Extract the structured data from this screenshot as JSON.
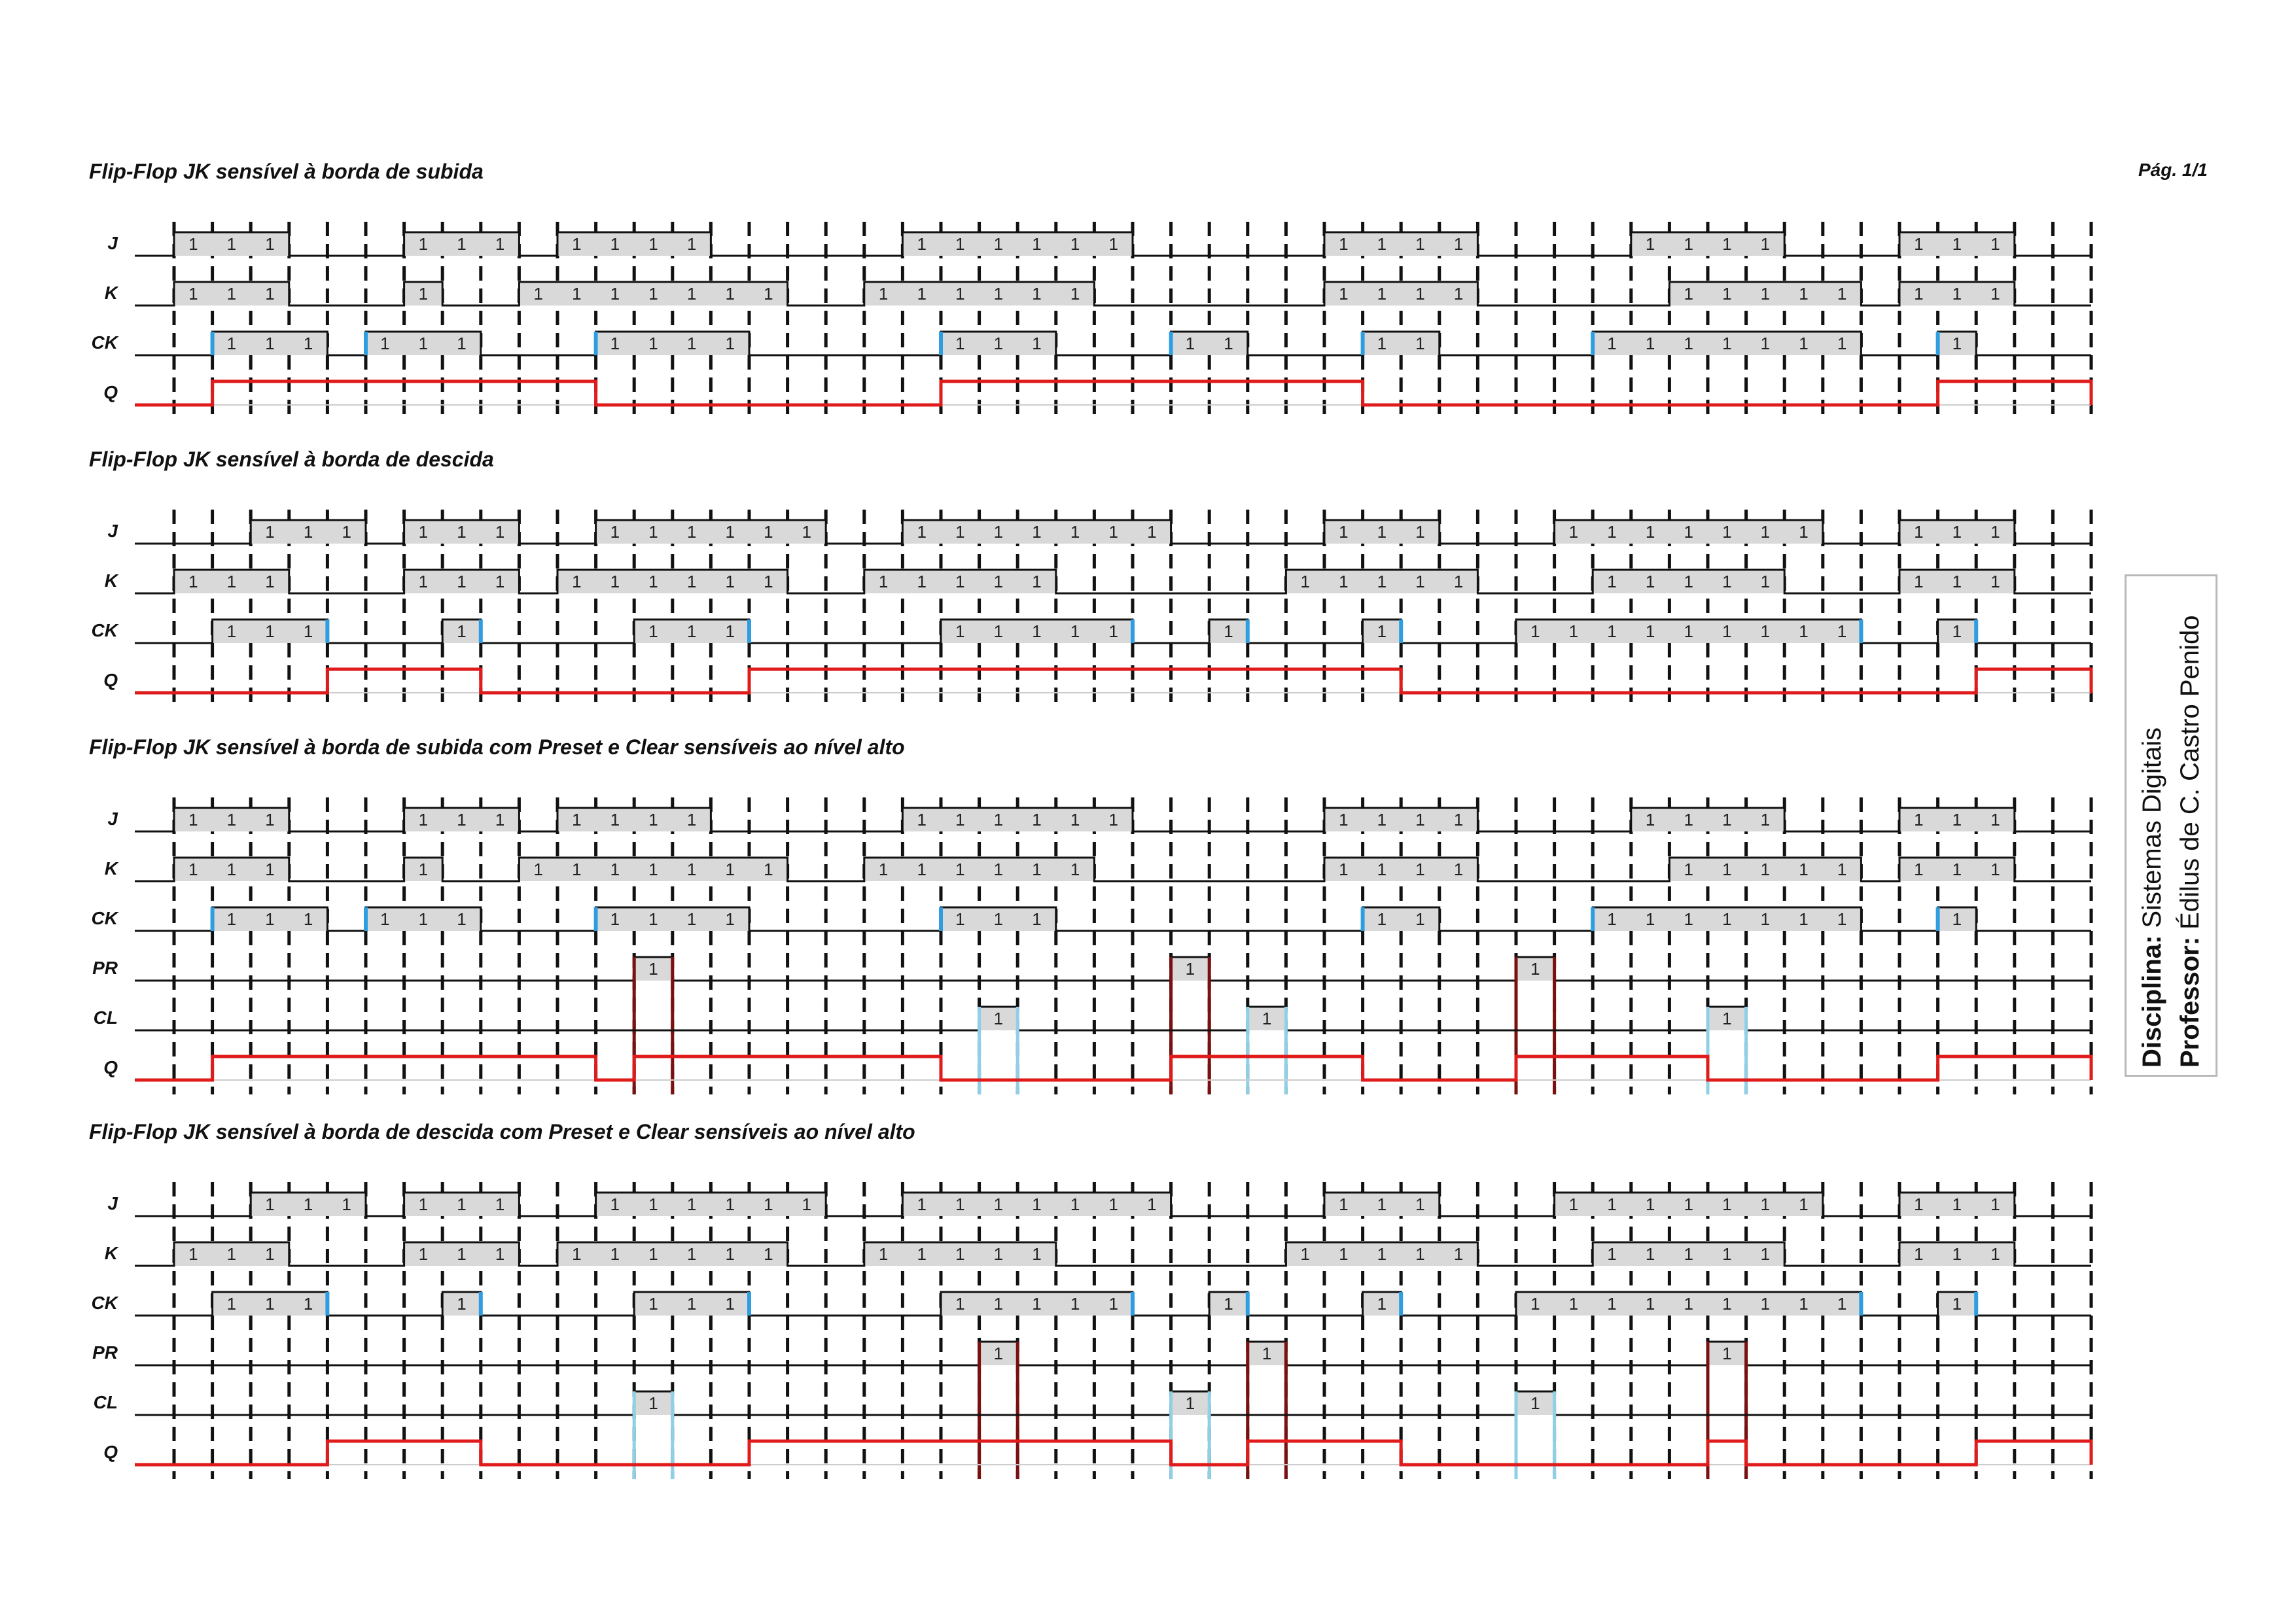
{
  "page": {
    "number": "Pág. 1/1"
  },
  "info": {
    "discipline_label": "Disciplina:",
    "discipline_value": "Sistemas Digitais",
    "professor_label": "Professor:",
    "professor_value": "Édilus de C. Castro Penido"
  },
  "colors": {
    "grid": "#111111",
    "signal": "#111111",
    "high_fill": "#d9d9d9",
    "q_output": "#e01b1b",
    "ck_edge": "#2f9ee0",
    "preset_marker": "#7a1010",
    "clear_marker": "#8fd0e6"
  },
  "sections": [
    {
      "title": "Flip-Flop JK sensível à borda de subida",
      "signals": [
        {
          "name": "J",
          "high": [
            [
              0,
              3
            ],
            [
              6,
              9
            ],
            [
              10,
              14
            ],
            [
              19,
              25
            ],
            [
              30,
              34
            ],
            [
              38,
              42
            ],
            [
              45,
              48
            ]
          ],
          "high_label": "1"
        },
        {
          "name": "K",
          "high": [
            [
              0,
              3
            ],
            [
              6,
              7
            ],
            [
              9,
              16
            ],
            [
              18,
              24
            ],
            [
              30,
              34
            ],
            [
              39,
              44
            ],
            [
              45,
              48
            ]
          ],
          "high_label": "1"
        },
        {
          "name": "CK",
          "high": [
            [
              1,
              4
            ],
            [
              5,
              8
            ],
            [
              11,
              15
            ],
            [
              20,
              23
            ],
            [
              26,
              28
            ],
            [
              31,
              33
            ],
            [
              37,
              44
            ],
            [
              46,
              47
            ]
          ],
          "high_label": "1"
        },
        {
          "name": "Q",
          "high": [
            [
              1,
              11
            ],
            [
              20,
              31
            ],
            [
              46,
              50
            ]
          ],
          "high_label": ""
        }
      ]
    },
    {
      "title": "Flip-Flop JK sensível à borda de descida",
      "signals": [
        {
          "name": "J",
          "high": [
            [
              2,
              5
            ],
            [
              6,
              9
            ],
            [
              11,
              17
            ],
            [
              19,
              26
            ],
            [
              30,
              33
            ],
            [
              36,
              43
            ],
            [
              45,
              48
            ]
          ],
          "high_label": "1"
        },
        {
          "name": "K",
          "high": [
            [
              0,
              3
            ],
            [
              6,
              9
            ],
            [
              10,
              16
            ],
            [
              18,
              23
            ],
            [
              29,
              34
            ],
            [
              37,
              42
            ],
            [
              45,
              48
            ]
          ],
          "high_label": "1"
        },
        {
          "name": "CK",
          "high": [
            [
              1,
              4
            ],
            [
              7,
              8
            ],
            [
              12,
              15
            ],
            [
              20,
              25
            ],
            [
              27,
              28
            ],
            [
              31,
              32
            ],
            [
              35,
              44
            ],
            [
              46,
              47
            ]
          ],
          "high_label": "1"
        },
        {
          "name": "Q",
          "high": [
            [
              4,
              8
            ],
            [
              15,
              32
            ],
            [
              47,
              50
            ]
          ],
          "high_label": ""
        }
      ]
    },
    {
      "title": "Flip-Flop JK sensível à borda de subida com Preset e Clear sensíveis ao nível alto",
      "signals": [
        {
          "name": "J",
          "high": [
            [
              0,
              3
            ],
            [
              6,
              9
            ],
            [
              10,
              14
            ],
            [
              19,
              25
            ],
            [
              30,
              34
            ],
            [
              38,
              42
            ],
            [
              45,
              48
            ]
          ],
          "high_label": "1"
        },
        {
          "name": "K",
          "high": [
            [
              0,
              3
            ],
            [
              6,
              7
            ],
            [
              9,
              16
            ],
            [
              18,
              24
            ],
            [
              30,
              34
            ],
            [
              39,
              44
            ],
            [
              45,
              48
            ]
          ],
          "high_label": "1"
        },
        {
          "name": "CK",
          "high": [
            [
              1,
              4
            ],
            [
              5,
              8
            ],
            [
              11,
              15
            ],
            [
              20,
              23
            ],
            [
              31,
              33
            ],
            [
              37,
              44
            ],
            [
              46,
              47
            ]
          ],
          "high_label": "1"
        },
        {
          "name": "PR",
          "high": [
            [
              12,
              13
            ],
            [
              26,
              27
            ],
            [
              35,
              36
            ]
          ],
          "high_label": "1"
        },
        {
          "name": "CL",
          "high": [
            [
              21,
              22
            ],
            [
              28,
              29
            ],
            [
              40,
              41
            ]
          ],
          "high_label": "1"
        },
        {
          "name": "Q",
          "high": [
            [
              1,
              11
            ],
            [
              12,
              20
            ],
            [
              26,
              31
            ],
            [
              35,
              40
            ],
            [
              46,
              50
            ]
          ],
          "high_label": ""
        }
      ]
    },
    {
      "title": "Flip-Flop JK sensível à borda de descida com Preset e Clear sensíveis ao nível alto",
      "signals": [
        {
          "name": "J",
          "high": [
            [
              2,
              5
            ],
            [
              6,
              9
            ],
            [
              11,
              17
            ],
            [
              19,
              26
            ],
            [
              30,
              33
            ],
            [
              36,
              43
            ],
            [
              45,
              48
            ]
          ],
          "high_label": "1"
        },
        {
          "name": "K",
          "high": [
            [
              0,
              3
            ],
            [
              6,
              9
            ],
            [
              10,
              16
            ],
            [
              18,
              23
            ],
            [
              29,
              34
            ],
            [
              37,
              42
            ],
            [
              45,
              48
            ]
          ],
          "high_label": "1"
        },
        {
          "name": "CK",
          "high": [
            [
              1,
              4
            ],
            [
              7,
              8
            ],
            [
              12,
              15
            ],
            [
              20,
              25
            ],
            [
              27,
              28
            ],
            [
              31,
              32
            ],
            [
              35,
              44
            ],
            [
              46,
              47
            ]
          ],
          "high_label": "1"
        },
        {
          "name": "PR",
          "high": [
            [
              21,
              22
            ],
            [
              28,
              29
            ],
            [
              40,
              41
            ]
          ],
          "high_label": "1"
        },
        {
          "name": "CL",
          "high": [
            [
              12,
              13
            ],
            [
              26,
              27
            ],
            [
              35,
              36
            ]
          ],
          "high_label": "1"
        },
        {
          "name": "Q",
          "high": [
            [
              4,
              8
            ],
            [
              15,
              26
            ],
            [
              28,
              32
            ],
            [
              40,
              41
            ],
            [
              47,
              50
            ]
          ],
          "high_label": ""
        }
      ]
    }
  ]
}
